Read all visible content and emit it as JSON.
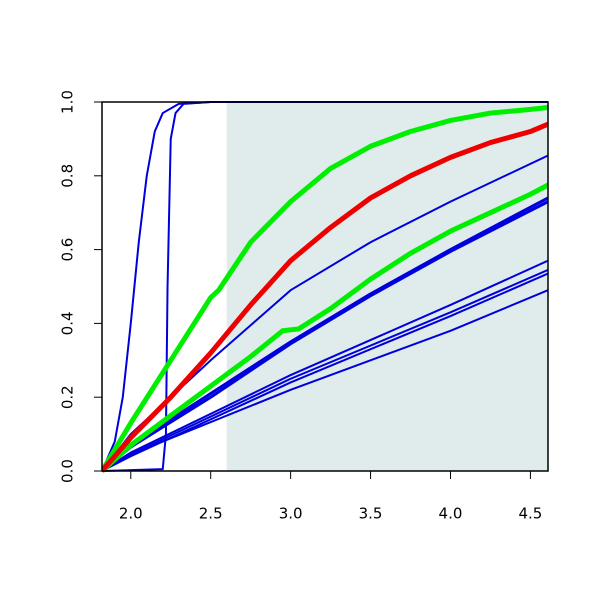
{
  "chart_data": {
    "type": "line",
    "xlim": [
      1.82,
      4.61
    ],
    "ylim": [
      0,
      1
    ],
    "xticks": [
      {
        "value": 2,
        "label": "2.0"
      },
      2.5,
      {
        "value": 3,
        "label": "3.0"
      },
      3.5,
      {
        "value": 4,
        "label": "4.0"
      },
      4.5
    ],
    "yticks": [
      {
        "value": 0,
        "label": "0.0"
      },
      0.2,
      0.4,
      0.6,
      0.8,
      {
        "value": 1,
        "label": "1.0"
      }
    ],
    "shaded_region": {
      "x": [
        2.6,
        4.61
      ],
      "color": "#dfeceb"
    },
    "series": [
      {
        "color": "#0000dd",
        "width": 2,
        "x": [
          1.82,
          1.9,
          1.95,
          2.0,
          2.05,
          2.1,
          2.15,
          2.2,
          2.3,
          2.5,
          4.61
        ],
        "values": [
          0,
          0.08,
          0.2,
          0.4,
          0.62,
          0.8,
          0.92,
          0.97,
          0.995,
          1,
          1
        ]
      },
      {
        "color": "#0000dd",
        "width": 2,
        "x": [
          1.82,
          2.2,
          2.22,
          2.23,
          2.25,
          2.28,
          2.33,
          2.5,
          4.61
        ],
        "values": [
          0,
          0.005,
          0.1,
          0.5,
          0.9,
          0.97,
          0.995,
          1,
          1
        ]
      },
      {
        "color": "#0000dd",
        "width": 2,
        "x": [
          1.82,
          2.0,
          2.5,
          3.0,
          3.5,
          4.0,
          4.61
        ],
        "values": [
          0,
          0.1,
          0.3,
          0.49,
          0.62,
          0.73,
          0.855
        ]
      },
      {
        "color": "#0000dd",
        "width": 3,
        "x": [
          1.82,
          2.0,
          2.5,
          3.0,
          3.5,
          4.0,
          4.61
        ],
        "values": [
          0,
          0.07,
          0.21,
          0.35,
          0.48,
          0.6,
          0.74
        ]
      },
      {
        "color": "#0000dd",
        "width": 3,
        "x": [
          1.82,
          2.0,
          2.5,
          3.0,
          3.5,
          4.0,
          4.61
        ],
        "values": [
          0,
          0.065,
          0.2,
          0.345,
          0.475,
          0.595,
          0.73
        ]
      },
      {
        "color": "#0000dd",
        "width": 2,
        "x": [
          1.82,
          2.0,
          3.0,
          4.0,
          4.61
        ],
        "values": [
          0,
          0.05,
          0.26,
          0.45,
          0.57
        ]
      },
      {
        "color": "#0000dd",
        "width": 2,
        "x": [
          1.82,
          2.0,
          3.0,
          4.0,
          4.61
        ],
        "values": [
          0,
          0.045,
          0.25,
          0.43,
          0.545
        ]
      },
      {
        "color": "#0000dd",
        "width": 2,
        "x": [
          1.82,
          2.0,
          3.0,
          4.0,
          4.61
        ],
        "values": [
          0,
          0.04,
          0.24,
          0.42,
          0.535
        ]
      },
      {
        "color": "#0000dd",
        "width": 2,
        "x": [
          1.82,
          2.0,
          3.0,
          4.0,
          4.61
        ],
        "values": [
          0,
          0.045,
          0.22,
          0.38,
          0.49
        ]
      },
      {
        "color": "#00ee00",
        "width": 5,
        "x": [
          1.82,
          2.0,
          2.25,
          2.5,
          2.55,
          2.75,
          3.0,
          3.25,
          3.5,
          3.75,
          4.0,
          4.25,
          4.5,
          4.61
        ],
        "values": [
          0,
          0.13,
          0.3,
          0.47,
          0.49,
          0.62,
          0.73,
          0.82,
          0.88,
          0.92,
          0.95,
          0.97,
          0.98,
          0.985
        ]
      },
      {
        "color": "#00ee00",
        "width": 5,
        "x": [
          1.82,
          2.0,
          2.25,
          2.5,
          2.75,
          2.95,
          3.05,
          3.25,
          3.5,
          3.75,
          4.0,
          4.25,
          4.5,
          4.61
        ],
        "values": [
          0,
          0.07,
          0.15,
          0.23,
          0.31,
          0.38,
          0.385,
          0.44,
          0.52,
          0.59,
          0.65,
          0.7,
          0.75,
          0.775
        ]
      },
      {
        "color": "#ee0000",
        "width": 5,
        "x": [
          1.82,
          2.0,
          2.25,
          2.5,
          2.75,
          3.0,
          3.25,
          3.5,
          3.75,
          4.0,
          4.25,
          4.5,
          4.61
        ],
        "values": [
          0,
          0.09,
          0.2,
          0.32,
          0.45,
          0.57,
          0.66,
          0.74,
          0.8,
          0.85,
          0.89,
          0.92,
          0.94
        ]
      }
    ]
  }
}
